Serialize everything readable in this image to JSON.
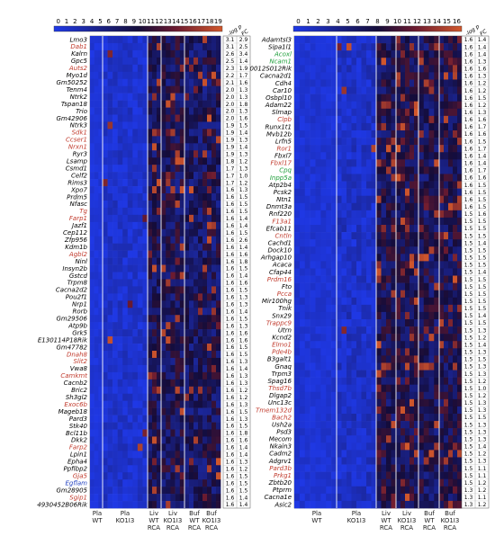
{
  "left_panel": {
    "colorbar_ticks": [
      "0",
      "1",
      "2",
      "3",
      "4",
      "5",
      "6",
      "7",
      "8",
      "9",
      "10",
      "11",
      "12",
      "13",
      "14",
      "15",
      "16",
      "17",
      "18",
      "19"
    ],
    "column_headers": [
      "-log p",
      "FC"
    ],
    "group_labels": [
      {
        "lines": [
          "Pla",
          "WT"
        ]
      },
      {
        "lines": [
          "Pla",
          "KO1I3"
        ]
      },
      {
        "lines": [
          "Liv",
          "WT",
          "RCA"
        ]
      },
      {
        "lines": [
          "Liv",
          "KO1I3",
          "RCA"
        ]
      },
      {
        "lines": [
          "Buf",
          "WT",
          "RCA"
        ]
      },
      {
        "lines": [
          "Buf",
          "KO1I3",
          "RCA"
        ]
      }
    ],
    "genes": [
      {
        "name": "Lmo3",
        "color": "#000000",
        "logp": "3.1",
        "fc": "2.9"
      },
      {
        "name": "Dab1",
        "color": "#c0392b",
        "logp": "3.1",
        "fc": "2.5"
      },
      {
        "name": "Kalrn",
        "color": "#000000",
        "logp": "2.6",
        "fc": "3.4"
      },
      {
        "name": "Gpc5",
        "color": "#000000",
        "logp": "2.5",
        "fc": "1.4"
      },
      {
        "name": "Auts2",
        "color": "#c0392b",
        "logp": "2.3",
        "fc": "1.9"
      },
      {
        "name": "Myo1d",
        "color": "#000000",
        "logp": "2.2",
        "fc": "1.7"
      },
      {
        "name": "Gm50252",
        "color": "#000000",
        "logp": "2.1",
        "fc": "1.6"
      },
      {
        "name": "Tenm4",
        "color": "#000000",
        "logp": "2.0",
        "fc": "1.3"
      },
      {
        "name": "Ntrk2",
        "color": "#000000",
        "logp": "2.0",
        "fc": "1.3"
      },
      {
        "name": "Tspan18",
        "color": "#000000",
        "logp": "2.0",
        "fc": "1.8"
      },
      {
        "name": "Trio",
        "color": "#000000",
        "logp": "2.0",
        "fc": "1.3"
      },
      {
        "name": "Gm42906",
        "color": "#000000",
        "logp": "2.0",
        "fc": "1.6"
      },
      {
        "name": "Ntrk3",
        "color": "#000000",
        "logp": "1.9",
        "fc": "1.5"
      },
      {
        "name": "Sdk1",
        "color": "#c0392b",
        "logp": "1.9",
        "fc": "1.4"
      },
      {
        "name": "Ccser1",
        "color": "#c0392b",
        "logp": "1.9",
        "fc": "1.3"
      },
      {
        "name": "Nrxn1",
        "color": "#c0392b",
        "logp": "1.9",
        "fc": "1.4"
      },
      {
        "name": "Ryr3",
        "color": "#000000",
        "logp": "1.9",
        "fc": "1.3"
      },
      {
        "name": "Lsamp",
        "color": "#000000",
        "logp": "1.8",
        "fc": "1.2"
      },
      {
        "name": "Csmd1",
        "color": "#000000",
        "logp": "1.7",
        "fc": "1.3"
      },
      {
        "name": "Celf2",
        "color": "#000000",
        "logp": "1.7",
        "fc": "1.0"
      },
      {
        "name": "Rims3",
        "color": "#000000",
        "logp": "1.7",
        "fc": "1.2"
      },
      {
        "name": "Xpo7",
        "color": "#000000",
        "logp": "1.6",
        "fc": "1.3"
      },
      {
        "name": "Prdm5",
        "color": "#000000",
        "logp": "1.6",
        "fc": "1.5"
      },
      {
        "name": "Nfasc",
        "color": "#000000",
        "logp": "1.6",
        "fc": "1.5"
      },
      {
        "name": "Tg",
        "color": "#c0392b",
        "logp": "1.6",
        "fc": "1.5"
      },
      {
        "name": "Farp1",
        "color": "#c0392b",
        "logp": "1.6",
        "fc": "1.4"
      },
      {
        "name": "Jazf1",
        "color": "#000000",
        "logp": "1.6",
        "fc": "1.4"
      },
      {
        "name": "Cep112",
        "color": "#000000",
        "logp": "1.6",
        "fc": "1.5"
      },
      {
        "name": "Zfp956",
        "color": "#000000",
        "logp": "1.6",
        "fc": "2.6"
      },
      {
        "name": "Kdm1b",
        "color": "#000000",
        "logp": "1.6",
        "fc": "1.4"
      },
      {
        "name": "Agbl2",
        "color": "#c0392b",
        "logp": "1.6",
        "fc": "1.6"
      },
      {
        "name": "Ninl",
        "color": "#000000",
        "logp": "1.6",
        "fc": "1.8"
      },
      {
        "name": "Insyn2b",
        "color": "#000000",
        "logp": "1.6",
        "fc": "1.5"
      },
      {
        "name": "Gstcd",
        "color": "#000000",
        "logp": "1.6",
        "fc": "1.4"
      },
      {
        "name": "Trpm8",
        "color": "#000000",
        "logp": "1.6",
        "fc": "1.6"
      },
      {
        "name": "Cacna2d2",
        "color": "#000000",
        "logp": "1.6",
        "fc": "1.5"
      },
      {
        "name": "Pou2f1",
        "color": "#000000",
        "logp": "1.6",
        "fc": "1.3"
      },
      {
        "name": "Nrp1",
        "color": "#000000",
        "logp": "1.6",
        "fc": "1.3"
      },
      {
        "name": "Rorb",
        "color": "#000000",
        "logp": "1.6",
        "fc": "1.4"
      },
      {
        "name": "Gm29506",
        "color": "#000000",
        "logp": "1.6",
        "fc": "1.5"
      },
      {
        "name": "Atp9b",
        "color": "#000000",
        "logp": "1.6",
        "fc": "1.3"
      },
      {
        "name": "Grk5",
        "color": "#000000",
        "logp": "1.6",
        "fc": "1.6"
      },
      {
        "name": "E130114P18Rik",
        "color": "#000000",
        "logp": "1.6",
        "fc": "1.6"
      },
      {
        "name": "Gm47782",
        "color": "#000000",
        "logp": "1.6",
        "fc": "1.5"
      },
      {
        "name": "Dnah8",
        "color": "#c0392b",
        "logp": "1.6",
        "fc": "1.5"
      },
      {
        "name": "Slit2",
        "color": "#c0392b",
        "logp": "1.6",
        "fc": "1.3"
      },
      {
        "name": "Vwa8",
        "color": "#000000",
        "logp": "1.6",
        "fc": "1.4"
      },
      {
        "name": "Camkmt",
        "color": "#c0392b",
        "logp": "1.6",
        "fc": "1.3"
      },
      {
        "name": "Cacnb2",
        "color": "#000000",
        "logp": "1.6",
        "fc": "1.3"
      },
      {
        "name": "Bric2",
        "color": "#000000",
        "logp": "1.6",
        "fc": "1.2"
      },
      {
        "name": "Sh3gl2",
        "color": "#000000",
        "logp": "1.6",
        "fc": "1.2"
      },
      {
        "name": "Exoc6b",
        "color": "#c0392b",
        "logp": "1.6",
        "fc": "1.3"
      },
      {
        "name": "Mageb18",
        "color": "#000000",
        "logp": "1.6",
        "fc": "1.5"
      },
      {
        "name": "Pard3",
        "color": "#000000",
        "logp": "1.6",
        "fc": "1.3"
      },
      {
        "name": "Stk40",
        "color": "#000000",
        "logp": "1.6",
        "fc": "1.5"
      },
      {
        "name": "Bcl11b",
        "color": "#000000",
        "logp": "1.6",
        "fc": "1.8"
      },
      {
        "name": "Dkk2",
        "color": "#000000",
        "logp": "1.6",
        "fc": "1.6"
      },
      {
        "name": "Farp2",
        "color": "#c0392b",
        "logp": "1.6",
        "fc": "1.4"
      },
      {
        "name": "Lpin1",
        "color": "#000000",
        "logp": "1.6",
        "fc": "1.4"
      },
      {
        "name": "Epha4",
        "color": "#000000",
        "logp": "1.6",
        "fc": "1.3"
      },
      {
        "name": "Ppfibp2",
        "color": "#000000",
        "logp": "1.6",
        "fc": "1.2"
      },
      {
        "name": "Gja5",
        "color": "#c0392b",
        "logp": "1.6",
        "fc": "1.5"
      },
      {
        "name": "Egflam",
        "color": "#1f3fbf",
        "logp": "1.6",
        "fc": "1.5"
      },
      {
        "name": "Gm28905",
        "color": "#000000",
        "logp": "1.6",
        "fc": "1.5"
      },
      {
        "name": "Sgip1",
        "color": "#c0392b",
        "logp": "1.6",
        "fc": "1.4"
      },
      {
        "name": "4930452B06Rik",
        "color": "#000000",
        "logp": "1.6",
        "fc": "1.4"
      }
    ]
  },
  "right_panel": {
    "colorbar_ticks": [
      "0",
      "1",
      "2",
      "3",
      "4",
      "5",
      "6",
      "7",
      "8",
      "9",
      "10",
      "11",
      "12",
      "13",
      "14",
      "15",
      "16"
    ],
    "column_headers": [
      "-log p",
      "FC"
    ],
    "group_labels": [
      {
        "lines": [
          "Pla",
          "WT"
        ]
      },
      {
        "lines": [
          "Pla",
          "KO1I3"
        ]
      },
      {
        "lines": [
          "Liv",
          "WT",
          "RCA"
        ]
      },
      {
        "lines": [
          "Liv",
          "KO1I3",
          "RCA"
        ]
      },
      {
        "lines": [
          "Buf",
          "WT",
          "RCA"
        ]
      },
      {
        "lines": [
          "Buf",
          "KO1I3",
          "RCA"
        ]
      }
    ],
    "genes": [
      {
        "name": "Adamtsl3",
        "color": "#000000",
        "logp": "1.6",
        "fc": "1.4"
      },
      {
        "name": "Sipa1l1",
        "color": "#000000",
        "logp": "1.6",
        "fc": "1.4"
      },
      {
        "name": "Acoxl",
        "color": "#1e9e3a",
        "logp": "1.6",
        "fc": "1.4"
      },
      {
        "name": "Ncam1",
        "color": "#1e9e3a",
        "logp": "1.6",
        "fc": "1.3"
      },
      {
        "name": "0012S012Rik",
        "color": "#000000",
        "logp": "1.6",
        "fc": "1.6"
      },
      {
        "name": "Cacna2d1",
        "color": "#000000",
        "logp": "1.6",
        "fc": "1.3"
      },
      {
        "name": "Cdh4",
        "color": "#000000",
        "logp": "1.6",
        "fc": "1.2"
      },
      {
        "name": "Car10",
        "color": "#000000",
        "logp": "1.6",
        "fc": "1.2"
      },
      {
        "name": "Osbpl10",
        "color": "#000000",
        "logp": "1.6",
        "fc": "1.5"
      },
      {
        "name": "Adam22",
        "color": "#000000",
        "logp": "1.6",
        "fc": "1.2"
      },
      {
        "name": "Slmap",
        "color": "#000000",
        "logp": "1.6",
        "fc": "1.3"
      },
      {
        "name": "Clpb",
        "color": "#c0392b",
        "logp": "1.6",
        "fc": "1.6"
      },
      {
        "name": "Runx1t1",
        "color": "#000000",
        "logp": "1.6",
        "fc": "1.7"
      },
      {
        "name": "Mvb12b",
        "color": "#000000",
        "logp": "1.6",
        "fc": "1.6"
      },
      {
        "name": "Lrfn5",
        "color": "#000000",
        "logp": "1.6",
        "fc": "1.5"
      },
      {
        "name": "Ror1",
        "color": "#c0392b",
        "logp": "1.6",
        "fc": "1.7"
      },
      {
        "name": "Fbxl7",
        "color": "#000000",
        "logp": "1.6",
        "fc": "1.4"
      },
      {
        "name": "Fbxl17",
        "color": "#c0392b",
        "logp": "1.6",
        "fc": "1.4"
      },
      {
        "name": "Cpq",
        "color": "#1e9e3a",
        "logp": "1.6",
        "fc": "1.7"
      },
      {
        "name": "Inpp5a",
        "color": "#1e9e3a",
        "logp": "1.6",
        "fc": "1.6"
      },
      {
        "name": "Atp2b4",
        "color": "#000000",
        "logp": "1.6",
        "fc": "1.5"
      },
      {
        "name": "Pcsk2",
        "color": "#000000",
        "logp": "1.6",
        "fc": "1.5"
      },
      {
        "name": "Ntn1",
        "color": "#000000",
        "logp": "1.6",
        "fc": "1.5"
      },
      {
        "name": "Dnmt3a",
        "color": "#000000",
        "logp": "1.6",
        "fc": "1.5"
      },
      {
        "name": "Rnf220",
        "color": "#000000",
        "logp": "1.5",
        "fc": "1.6"
      },
      {
        "name": "F13a1",
        "color": "#c0392b",
        "logp": "1.5",
        "fc": "1.5"
      },
      {
        "name": "Efcab11",
        "color": "#000000",
        "logp": "1.5",
        "fc": "1.5"
      },
      {
        "name": "Cntln",
        "color": "#c0392b",
        "logp": "1.5",
        "fc": "1.5"
      },
      {
        "name": "Cachd1",
        "color": "#000000",
        "logp": "1.5",
        "fc": "1.4"
      },
      {
        "name": "Dock10",
        "color": "#000000",
        "logp": "1.5",
        "fc": "1.5"
      },
      {
        "name": "Arhgap10",
        "color": "#000000",
        "logp": "1.5",
        "fc": "1.5"
      },
      {
        "name": "Acaca",
        "color": "#000000",
        "logp": "1.5",
        "fc": "1.5"
      },
      {
        "name": "Cfap44",
        "color": "#000000",
        "logp": "1.5",
        "fc": "1.4"
      },
      {
        "name": "Prdm16",
        "color": "#c0392b",
        "logp": "1.5",
        "fc": "1.5"
      },
      {
        "name": "Fto",
        "color": "#000000",
        "logp": "1.5",
        "fc": "1.5"
      },
      {
        "name": "Pcca",
        "color": "#c0392b",
        "logp": "1.5",
        "fc": "1.5"
      },
      {
        "name": "Mir100hg",
        "color": "#000000",
        "logp": "1.5",
        "fc": "1.5"
      },
      {
        "name": "Tnik",
        "color": "#000000",
        "logp": "1.5",
        "fc": "1.5"
      },
      {
        "name": "Snx29",
        "color": "#000000",
        "logp": "1.5",
        "fc": "1.4"
      },
      {
        "name": "Trappc9",
        "color": "#c0392b",
        "logp": "1.5",
        "fc": "1.5"
      },
      {
        "name": "Utrn",
        "color": "#000000",
        "logp": "1.5",
        "fc": "1.3"
      },
      {
        "name": "Kcnd2",
        "color": "#000000",
        "logp": "1.5",
        "fc": "1.2"
      },
      {
        "name": "Elmo1",
        "color": "#c0392b",
        "logp": "1.5",
        "fc": "1.4"
      },
      {
        "name": "Pde4b",
        "color": "#c0392b",
        "logp": "1.5",
        "fc": "1.3"
      },
      {
        "name": "B3galt1",
        "color": "#000000",
        "logp": "1.5",
        "fc": "1.5"
      },
      {
        "name": "Gnaq",
        "color": "#000000",
        "logp": "1.5",
        "fc": "1.3"
      },
      {
        "name": "Trpm3",
        "color": "#000000",
        "logp": "1.5",
        "fc": "1.3"
      },
      {
        "name": "Spag16",
        "color": "#000000",
        "logp": "1.5",
        "fc": "1.2"
      },
      {
        "name": "Thsd7b",
        "color": "#c0392b",
        "logp": "1.5",
        "fc": "1.0"
      },
      {
        "name": "Dlgap2",
        "color": "#000000",
        "logp": "1.5",
        "fc": "1.2"
      },
      {
        "name": "Unc13c",
        "color": "#000000",
        "logp": "1.5",
        "fc": "1.3"
      },
      {
        "name": "Tmem132d",
        "color": "#c0392b",
        "logp": "1.5",
        "fc": "1.3"
      },
      {
        "name": "Bach2",
        "color": "#c0392b",
        "logp": "1.5",
        "fc": "1.5"
      },
      {
        "name": "Ush2a",
        "color": "#000000",
        "logp": "1.5",
        "fc": "1.3"
      },
      {
        "name": "Psd3",
        "color": "#000000",
        "logp": "1.5",
        "fc": "1.3"
      },
      {
        "name": "Mecom",
        "color": "#000000",
        "logp": "1.5",
        "fc": "1.3"
      },
      {
        "name": "Nkain3",
        "color": "#000000",
        "logp": "1.5",
        "fc": "1.4"
      },
      {
        "name": "Cadm2",
        "color": "#000000",
        "logp": "1.5",
        "fc": "1.2"
      },
      {
        "name": "Adgrv1",
        "color": "#000000",
        "logp": "1.5",
        "fc": "1.3"
      },
      {
        "name": "Pard3b",
        "color": "#c0392b",
        "logp": "1.5",
        "fc": "1.1"
      },
      {
        "name": "Prkg1",
        "color": "#c0392b",
        "logp": "1.5",
        "fc": "1.1"
      },
      {
        "name": "Zbtb20",
        "color": "#000000",
        "logp": "1.5",
        "fc": "1.2"
      },
      {
        "name": "Ptprm",
        "color": "#000000",
        "logp": "1.3",
        "fc": "1.2"
      },
      {
        "name": "Cacna1e",
        "color": "#000000",
        "logp": "1.3",
        "fc": "1.1"
      },
      {
        "name": "Asic2",
        "color": "#000000",
        "logp": "1.3",
        "fc": "1.2"
      }
    ]
  },
  "colors": {
    "cmap_low": "#1f39e8",
    "cmap_mid": "#140c3a",
    "cmap_high": "#d2582c"
  }
}
